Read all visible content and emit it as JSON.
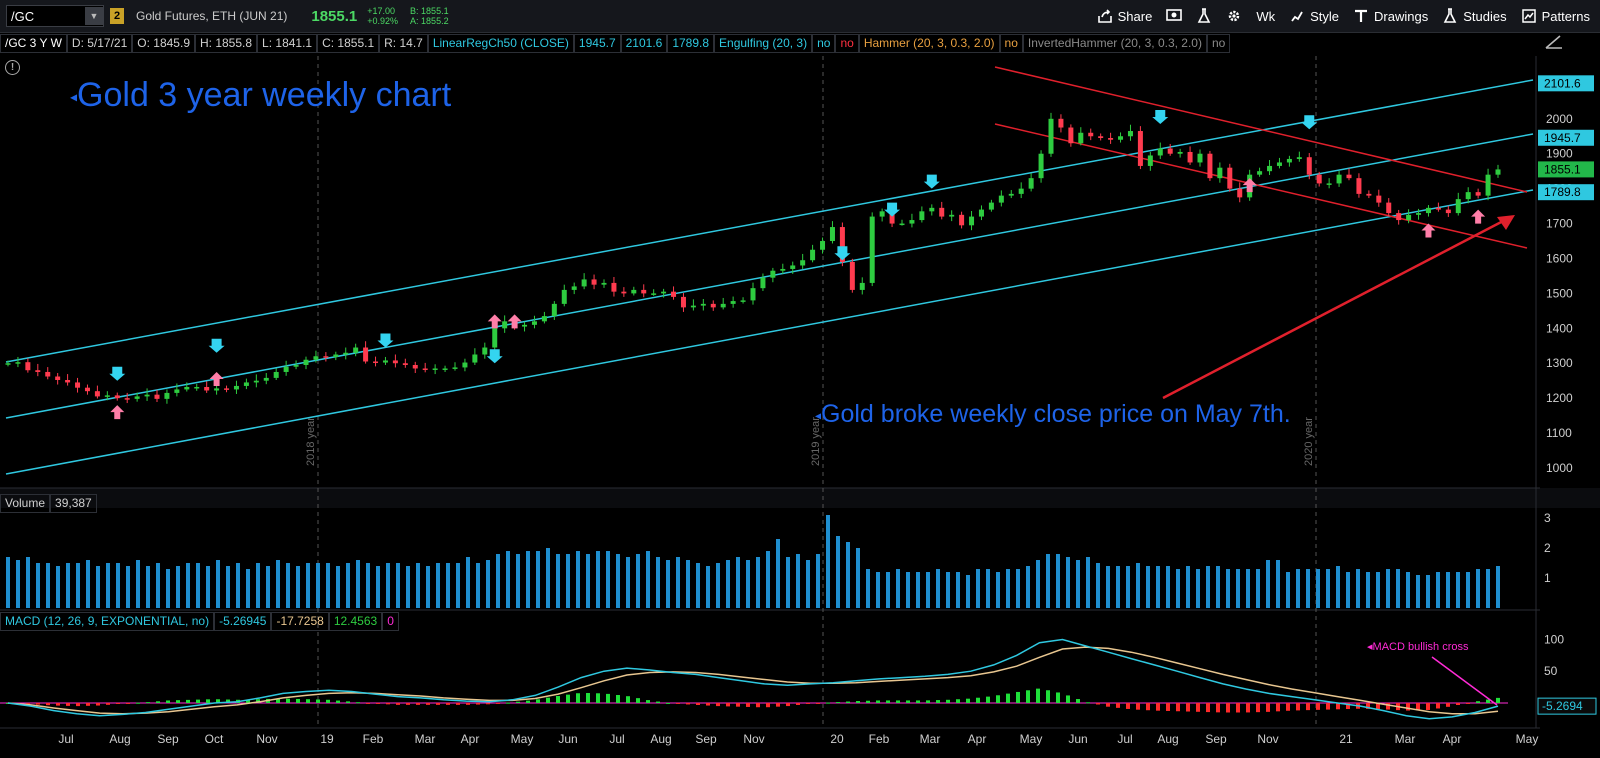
{
  "topbar": {
    "symbol": "/GC",
    "link_badge": "2",
    "instrument": "Gold Futures, ETH (JUN 21)",
    "last": "1855.1",
    "change": "+17.00",
    "change_pct": "+0.92%",
    "bid": "B: 1855.1",
    "ask": "A: 1855.2",
    "tools": [
      {
        "label": "Share",
        "icon": "share-icon"
      },
      {
        "label": "",
        "icon": "screenshot-icon"
      },
      {
        "label": "",
        "icon": "flask-icon"
      },
      {
        "label": "",
        "icon": "gear-icon"
      },
      {
        "label": "Wk",
        "icon": ""
      },
      {
        "label": "Style",
        "icon": "style-icon"
      },
      {
        "label": "Drawings",
        "icon": "drawings-icon"
      },
      {
        "label": "Studies",
        "icon": "studies-icon"
      },
      {
        "label": "Patterns",
        "icon": "patterns-icon"
      }
    ]
  },
  "header": {
    "symbol_period": "/GC 3 Y W",
    "date": "D: 5/17/21",
    "open": "O: 1845.9",
    "high": "H: 1855.8",
    "low": "L: 1841.1",
    "close": "C: 1855.1",
    "range": "R: 14.7",
    "linreg": "LinearRegCh50 (CLOSE)",
    "linreg_upper": "1945.7",
    "linreg_mid": "2101.6",
    "linreg_lower": "1789.8",
    "engulfing": "Engulfing (20, 3)",
    "engulf_v1": "no",
    "engulf_v2": "no",
    "hammer": "Hammer (20, 3, 0.3, 2.0)",
    "hammer_v": "no",
    "inv_hammer": "InvertedHammer (20, 3, 0.3, 2.0)",
    "inv_hammer_v": "no"
  },
  "annotations": {
    "title": "Gold 3 year weekly chart",
    "note": "Gold broke weekly close price on May 7th.",
    "macd_note": "MACD bullish cross"
  },
  "price_tags": [
    {
      "value": "2101.6",
      "color": "#2fc8e0",
      "price": 2101.6
    },
    {
      "value": "1945.7",
      "color": "#2fc8e0",
      "price": 1945.7
    },
    {
      "value": "1855.1",
      "color": "#22b84a",
      "price": 1855.1
    },
    {
      "value": "1789.8",
      "color": "#2fc8e0",
      "price": 1789.8
    }
  ],
  "volume": {
    "label": "Volume",
    "value": "39,387"
  },
  "macd": {
    "label": "MACD (12, 26, 9, EXPONENTIAL, no)",
    "value": "-5.26945",
    "avg": "-17.7258",
    "diff": "12.4563",
    "zero": "0",
    "tag": "-5.2694"
  },
  "year_markers": [
    "2018 year",
    "2019 year",
    "2020 year"
  ],
  "colors": {
    "up": "#2ecc40",
    "down": "#ff3b4f",
    "channel": "#2fc8e0",
    "trend": "#e0202c",
    "volume": "#1f8fd0",
    "macd": "#2fc8e0",
    "signal": "#e8c690",
    "ann": "#1e63e8"
  },
  "chart_data": [
    {
      "type": "candlestick",
      "title": "Gold 3 year weekly chart",
      "ylim": [
        950,
        2150
      ],
      "yticks": [
        "2000",
        "1900",
        "1800",
        "1700",
        "1600",
        "1500",
        "1400",
        "1300",
        "1200",
        "1100",
        "1000"
      ],
      "xticks": [
        "Jul",
        "Aug",
        "Sep",
        "Oct",
        "Nov",
        "19",
        "Feb",
        "Mar",
        "Apr",
        "May",
        "Jun",
        "Jul",
        "Aug",
        "Sep",
        "Nov",
        "20",
        "Feb",
        "Mar",
        "Apr",
        "May",
        "Jun",
        "Jul",
        "Aug",
        "Sep",
        "Nov",
        "21",
        "Mar",
        "Apr",
        "May"
      ],
      "close": [
        1300,
        1303,
        1280,
        1275,
        1262,
        1252,
        1245,
        1230,
        1220,
        1205,
        1208,
        1200,
        1198,
        1205,
        1210,
        1198,
        1215,
        1225,
        1232,
        1232,
        1222,
        1228,
        1225,
        1235,
        1245,
        1250,
        1258,
        1275,
        1290,
        1295,
        1310,
        1320,
        1318,
        1325,
        1330,
        1345,
        1305,
        1302,
        1308,
        1300,
        1295,
        1285,
        1283,
        1285,
        1285,
        1288,
        1302,
        1325,
        1345,
        1400,
        1420,
        1405,
        1410,
        1420,
        1435,
        1470,
        1510,
        1520,
        1540,
        1525,
        1530,
        1505,
        1500,
        1510,
        1500,
        1500,
        1505,
        1490,
        1460,
        1465,
        1470,
        1460,
        1470,
        1478,
        1480,
        1515,
        1545,
        1565,
        1570,
        1580,
        1595,
        1625,
        1650,
        1690,
        1590,
        1510,
        1530,
        1720,
        1735,
        1700,
        1700,
        1710,
        1735,
        1745,
        1720,
        1725,
        1695,
        1720,
        1740,
        1760,
        1780,
        1785,
        1800,
        1830,
        1900,
        2000,
        1975,
        1930,
        1960,
        1950,
        1945,
        1940,
        1950,
        1965,
        1865,
        1895,
        1915,
        1900,
        1905,
        1875,
        1900,
        1830,
        1860,
        1800,
        1775,
        1840,
        1850,
        1865,
        1875,
        1885,
        1890,
        1840,
        1815,
        1815,
        1840,
        1830,
        1785,
        1780,
        1760,
        1730,
        1710,
        1725,
        1730,
        1745,
        1740,
        1730,
        1770,
        1790,
        1780,
        1840,
        1855
      ],
      "markers_down": [
        {
          "x": "Sep",
          "y": "1250"
        },
        {
          "x": "19",
          "y": "1330"
        },
        {
          "x": "Feb",
          "y": "1345"
        },
        {
          "x": "Apr",
          "y": "1300"
        },
        {
          "x": "Feb",
          "y": "1595"
        },
        {
          "x": "Mar",
          "y": "1720"
        },
        {
          "x": "May",
          "y": "1800"
        },
        {
          "x": "Aug",
          "y": "1985"
        },
        {
          "x": "21",
          "y": "1970"
        }
      ],
      "markers_up": [
        {
          "x": "Sep",
          "y": "1180"
        },
        {
          "x": "19",
          "y": "1275"
        },
        {
          "x": "Nov",
          "y": "1440"
        },
        {
          "x": "Nov",
          "y": "1440"
        },
        {
          "x": "Nov",
          "y": "1830"
        },
        {
          "x": "Apr",
          "y": "1700"
        },
        {
          "x": "May",
          "y": "1740"
        }
      ]
    },
    {
      "type": "bar",
      "title": "Volume",
      "ylim": [
        0,
        3.2
      ],
      "yticks": [
        "3",
        "2",
        "1"
      ],
      "values": [
        1.7,
        1.6,
        1.7,
        1.5,
        1.5,
        1.4,
        1.5,
        1.5,
        1.6,
        1.4,
        1.5,
        1.5,
        1.4,
        1.6,
        1.4,
        1.5,
        1.3,
        1.4,
        1.5,
        1.5,
        1.4,
        1.6,
        1.4,
        1.5,
        1.3,
        1.5,
        1.4,
        1.6,
        1.5,
        1.4,
        1.5,
        1.5,
        1.5,
        1.4,
        1.5,
        1.6,
        1.5,
        1.4,
        1.5,
        1.5,
        1.4,
        1.5,
        1.4,
        1.5,
        1.5,
        1.5,
        1.7,
        1.5,
        1.6,
        1.8,
        1.9,
        1.8,
        1.9,
        1.9,
        2.0,
        1.8,
        1.8,
        1.9,
        1.8,
        1.9,
        1.9,
        1.8,
        1.7,
        1.8,
        1.9,
        1.7,
        1.6,
        1.7,
        1.6,
        1.5,
        1.4,
        1.5,
        1.6,
        1.7,
        1.6,
        1.7,
        1.9,
        2.3,
        1.7,
        1.8,
        1.6,
        1.8,
        3.1,
        2.4,
        2.2,
        2.0,
        1.3,
        1.2,
        1.2,
        1.3,
        1.2,
        1.2,
        1.2,
        1.3,
        1.2,
        1.2,
        1.1,
        1.3,
        1.3,
        1.2,
        1.3,
        1.3,
        1.4,
        1.6,
        1.8,
        1.8,
        1.7,
        1.6,
        1.7,
        1.5,
        1.4,
        1.4,
        1.4,
        1.5,
        1.4,
        1.4,
        1.4,
        1.3,
        1.4,
        1.3,
        1.4,
        1.4,
        1.3,
        1.3,
        1.3,
        1.3,
        1.6,
        1.6,
        1.2,
        1.3,
        1.3,
        1.3,
        1.3,
        1.4,
        1.2,
        1.3,
        1.2,
        1.2,
        1.3,
        1.3,
        1.2,
        1.1,
        1.1,
        1.2,
        1.2,
        1.2,
        1.2,
        1.3,
        1.3,
        1.4
      ]
    },
    {
      "type": "line",
      "title": "MACD (12, 26, 9, EXPONENTIAL, no)",
      "ylim": [
        -30,
        115
      ],
      "yticks": [
        "100",
        "50",
        "0"
      ],
      "series": [
        {
          "name": "MACD",
          "values": [
            0,
            -5,
            -12,
            -17,
            -20,
            -18,
            -15,
            -10,
            -5,
            0,
            2,
            8,
            15,
            18,
            20,
            18,
            14,
            10,
            8,
            5,
            3,
            2,
            5,
            12,
            25,
            40,
            50,
            55,
            52,
            48,
            45,
            40,
            35,
            30,
            28,
            30,
            32,
            35,
            38,
            40,
            42,
            45,
            50,
            60,
            75,
            95,
            100,
            90,
            80,
            70,
            60,
            50,
            40,
            30,
            22,
            15,
            10,
            5,
            0,
            -5,
            -12,
            -20,
            -25,
            -22,
            -15,
            -5
          ]
        },
        {
          "name": "Signal",
          "values": [
            0,
            -3,
            -8,
            -12,
            -16,
            -17,
            -16,
            -14,
            -10,
            -6,
            -3,
            2,
            8,
            12,
            15,
            16,
            15,
            13,
            11,
            8,
            6,
            4,
            4,
            7,
            14,
            24,
            35,
            44,
            48,
            49,
            48,
            45,
            41,
            37,
            33,
            31,
            31,
            32,
            34,
            36,
            38,
            40,
            43,
            49,
            58,
            72,
            85,
            88,
            86,
            80,
            72,
            63,
            54,
            45,
            37,
            29,
            22,
            16,
            10,
            4,
            -2,
            -8,
            -14,
            -17,
            -17,
            -13
          ]
        }
      ]
    }
  ]
}
